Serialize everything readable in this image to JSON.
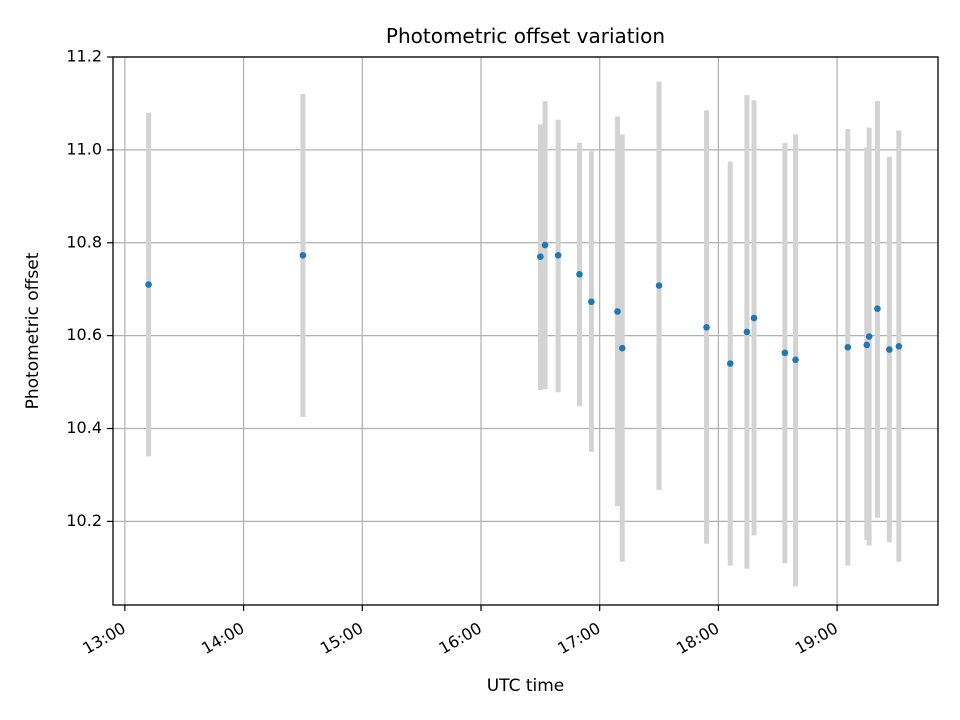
{
  "chart_data": {
    "type": "scatter",
    "title": "Photometric offset variation",
    "xlabel": "UTC time",
    "ylabel": "Photometric offset",
    "xlim": [
      12.9,
      19.85
    ],
    "ylim": [
      10.02,
      11.2
    ],
    "x_ticks": [
      {
        "value": 13,
        "label": "13:00"
      },
      {
        "value": 14,
        "label": "14:00"
      },
      {
        "value": 15,
        "label": "15:00"
      },
      {
        "value": 16,
        "label": "16:00"
      },
      {
        "value": 17,
        "label": "17:00"
      },
      {
        "value": 18,
        "label": "18:00"
      },
      {
        "value": 19,
        "label": "19:00"
      }
    ],
    "y_ticks": [
      {
        "value": 10.2,
        "label": "10.2"
      },
      {
        "value": 10.4,
        "label": "10.4"
      },
      {
        "value": 10.6,
        "label": "10.6"
      },
      {
        "value": 10.8,
        "label": "10.8"
      },
      {
        "value": 11.0,
        "label": "11.0"
      },
      {
        "value": 11.2,
        "label": "11.2"
      }
    ],
    "grid": true,
    "point_color": "#1f77b4",
    "errorbar_color": "#d3d3d3",
    "points": [
      {
        "x": 13.2,
        "y": 10.71,
        "ylo": 10.34,
        "yhi": 11.08
      },
      {
        "x": 14.5,
        "y": 10.773,
        "ylo": 10.425,
        "yhi": 11.12
      },
      {
        "x": 16.5,
        "y": 10.77,
        "ylo": 10.483,
        "yhi": 11.055
      },
      {
        "x": 16.54,
        "y": 10.795,
        "ylo": 10.485,
        "yhi": 11.105
      },
      {
        "x": 16.65,
        "y": 10.773,
        "ylo": 10.478,
        "yhi": 11.065
      },
      {
        "x": 16.83,
        "y": 10.732,
        "ylo": 10.448,
        "yhi": 11.015
      },
      {
        "x": 16.93,
        "y": 10.673,
        "ylo": 10.35,
        "yhi": 10.997
      },
      {
        "x": 17.15,
        "y": 10.652,
        "ylo": 10.233,
        "yhi": 11.072
      },
      {
        "x": 17.19,
        "y": 10.573,
        "ylo": 10.113,
        "yhi": 11.033
      },
      {
        "x": 17.5,
        "y": 10.708,
        "ylo": 10.268,
        "yhi": 11.147
      },
      {
        "x": 17.9,
        "y": 10.618,
        "ylo": 10.152,
        "yhi": 11.085
      },
      {
        "x": 18.1,
        "y": 10.54,
        "ylo": 10.105,
        "yhi": 10.975
      },
      {
        "x": 18.24,
        "y": 10.608,
        "ylo": 10.098,
        "yhi": 11.118
      },
      {
        "x": 18.3,
        "y": 10.638,
        "ylo": 10.17,
        "yhi": 11.107
      },
      {
        "x": 18.56,
        "y": 10.563,
        "ylo": 10.11,
        "yhi": 11.015
      },
      {
        "x": 18.65,
        "y": 10.548,
        "ylo": 10.06,
        "yhi": 11.033
      },
      {
        "x": 19.09,
        "y": 10.575,
        "ylo": 10.105,
        "yhi": 11.045
      },
      {
        "x": 19.25,
        "y": 10.58,
        "ylo": 10.16,
        "yhi": 11.005
      },
      {
        "x": 19.27,
        "y": 10.598,
        "ylo": 10.148,
        "yhi": 11.048
      },
      {
        "x": 19.34,
        "y": 10.658,
        "ylo": 10.208,
        "yhi": 11.105
      },
      {
        "x": 19.44,
        "y": 10.57,
        "ylo": 10.155,
        "yhi": 10.985
      },
      {
        "x": 19.52,
        "y": 10.577,
        "ylo": 10.113,
        "yhi": 11.042
      }
    ]
  }
}
